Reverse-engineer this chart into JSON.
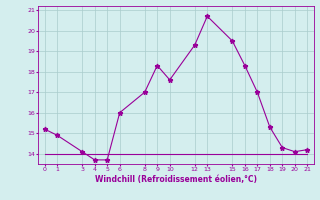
{
  "xlabel": "Windchill (Refroidissement éolien,°C)",
  "x_hours": [
    0,
    1,
    3,
    4,
    5,
    6,
    8,
    9,
    10,
    12,
    13,
    15,
    16,
    17,
    18,
    19,
    20,
    21
  ],
  "y_windchill": [
    15.2,
    14.9,
    14.1,
    13.7,
    13.7,
    16.0,
    17.0,
    18.3,
    17.6,
    19.3,
    20.7,
    19.5,
    18.3,
    17.0,
    15.3,
    14.3,
    14.1,
    14.2
  ],
  "x_flat": [
    0,
    1,
    3,
    4,
    5,
    6,
    8,
    9,
    10,
    12,
    13,
    15,
    16,
    17,
    18,
    19,
    20,
    21
  ],
  "y_flat": [
    14.0,
    14.0,
    14.0,
    14.0,
    14.0,
    14.0,
    14.0,
    14.0,
    14.0,
    14.0,
    14.0,
    14.0,
    14.0,
    14.0,
    14.0,
    14.0,
    14.0,
    14.0
  ],
  "line_color": "#990099",
  "bg_color": "#d4eeee",
  "grid_color": "#aacccc",
  "xlim": [
    -0.5,
    21.5
  ],
  "ylim": [
    13.5,
    21.2
  ],
  "yticks": [
    14,
    15,
    16,
    17,
    18,
    19,
    20,
    21
  ],
  "xticks": [
    0,
    1,
    3,
    4,
    5,
    6,
    8,
    9,
    10,
    12,
    13,
    15,
    16,
    17,
    18,
    19,
    20,
    21
  ]
}
